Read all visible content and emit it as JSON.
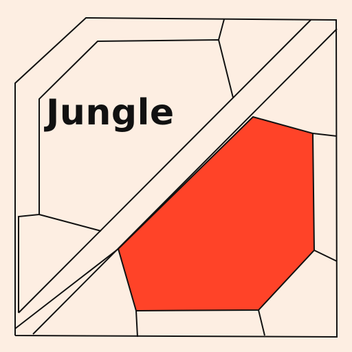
{
  "map": {
    "background_color": "#fdeee2",
    "highlight_color": "#ff4328",
    "outline_color": "#111111",
    "region_label": "Jungle",
    "highlighted_region": "jungle-region",
    "regions": [
      {
        "name": "outer-border",
        "highlighted": false
      },
      {
        "name": "top-left-inner-area",
        "highlighted": false
      },
      {
        "name": "diagonal-river",
        "highlighted": false
      },
      {
        "name": "jungle-region",
        "highlighted": true
      },
      {
        "name": "right-lane",
        "highlighted": false
      },
      {
        "name": "bottom-lane",
        "highlighted": false
      },
      {
        "name": "left-lane",
        "highlighted": false
      }
    ]
  }
}
